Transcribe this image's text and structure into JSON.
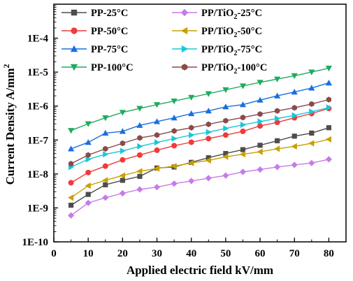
{
  "chart_data": {
    "type": "line",
    "xlabel": "Applied electric field kV/mm",
    "ylabel_prefix": "Current Density A/mm",
    "ylabel_sup": "2",
    "xlim": [
      0,
      85
    ],
    "ylim": [
      1e-10,
      0.001
    ],
    "yscale": "log",
    "x_ticks": [
      "0",
      "10",
      "20",
      "30",
      "40",
      "50",
      "60",
      "70",
      "80"
    ],
    "y_ticks": [
      "1E-10",
      "1E-9",
      "1E-8",
      "1E-7",
      "1E-6",
      "1E-5",
      "1E-4"
    ],
    "legend_position": "top",
    "x": [
      5,
      10,
      15,
      20,
      25,
      30,
      35,
      40,
      45,
      50,
      55,
      60,
      65,
      70,
      75,
      80
    ],
    "series": [
      {
        "name_main": "PP-25°C",
        "name_sub": "",
        "name_tail": "",
        "color": "#4d4d4d",
        "marker": "square",
        "values": [
          1.2e-09,
          2.5e-09,
          4.8e-09,
          6.5e-09,
          8.5e-09,
          1.5e-08,
          1.6e-08,
          2.2e-08,
          3e-08,
          4e-08,
          5.2e-08,
          7e-08,
          9.5e-08,
          1.3e-07,
          1.6e-07,
          2.3e-07
        ]
      },
      {
        "name_main": "PP/TiO",
        "name_sub": "2",
        "name_tail": "-25°C",
        "color": "#c77be6",
        "marker": "diamond",
        "values": [
          6e-10,
          1.4e-09,
          2e-09,
          2.7e-09,
          3.5e-09,
          4.1e-09,
          5.2e-09,
          6.2e-09,
          7.5e-09,
          9e-09,
          1.15e-08,
          1.35e-08,
          1.6e-08,
          1.85e-08,
          2.1e-08,
          2.7e-08
        ]
      },
      {
        "name_main": "PP-50°C",
        "name_sub": "",
        "name_tail": "",
        "color": "#ef3b3b",
        "marker": "circle",
        "values": [
          5.5e-09,
          1.1e-08,
          1.7e-08,
          2.6e-08,
          3.6e-08,
          5e-08,
          6.8e-08,
          8.6e-08,
          1.1e-07,
          1.4e-07,
          1.8e-07,
          2.6e-07,
          3.3e-07,
          4.5e-07,
          6e-07,
          8.5e-07
        ]
      },
      {
        "name_main": "PP/TiO",
        "name_sub": "2",
        "name_tail": "-50°C",
        "color": "#c9a000",
        "marker": "triangle-left",
        "values": [
          2e-09,
          4.5e-09,
          6.5e-09,
          9e-09,
          1.2e-08,
          1.45e-08,
          1.7e-08,
          2.1e-08,
          2.5e-08,
          3.2e-08,
          3.8e-08,
          4.5e-08,
          5.5e-08,
          6.5e-08,
          8e-08,
          1.05e-07
        ]
      },
      {
        "name_main": "PP-75°C",
        "name_sub": "",
        "name_tail": "",
        "color": "#1a6fe0",
        "marker": "triangle-up",
        "values": [
          5.5e-08,
          8.5e-08,
          1.6e-07,
          1.8e-07,
          2.7e-07,
          3.5e-07,
          4.5e-07,
          6e-07,
          7.2e-07,
          9.5e-07,
          1.1e-06,
          1.5e-06,
          2e-06,
          2.6e-06,
          3.4e-06,
          4.8e-06
        ]
      },
      {
        "name_main": "PP/TiO",
        "name_sub": "2",
        "name_tail": "-75°C",
        "color": "#19c7d9",
        "marker": "triangle-right",
        "values": [
          1.6e-08,
          2.7e-08,
          3.8e-08,
          4.8e-08,
          6.5e-08,
          8.5e-08,
          1.1e-07,
          1.4e-07,
          1.7e-07,
          2.2e-07,
          2.8e-07,
          3.5e-07,
          4.3e-07,
          5.3e-07,
          6.8e-07,
          9e-07
        ]
      },
      {
        "name_main": "PP-100°C",
        "name_sub": "",
        "name_tail": "",
        "color": "#1fab60",
        "marker": "triangle-down",
        "values": [
          1.9e-07,
          3e-07,
          4.5e-07,
          6.5e-07,
          8.5e-07,
          1.1e-06,
          1.4e-06,
          1.8e-06,
          2.3e-06,
          3e-06,
          3.9e-06,
          5e-06,
          6.2e-06,
          7.8e-06,
          1e-05,
          1.3e-05
        ]
      },
      {
        "name_main": "PP/TiO",
        "name_sub": "2",
        "name_tail": "-100°C",
        "color": "#8b4a4a",
        "marker": "hexagon",
        "values": [
          2e-08,
          3.6e-08,
          5.5e-08,
          8e-08,
          1.15e-07,
          1.4e-07,
          1.85e-07,
          2.3e-07,
          2.9e-07,
          3.7e-07,
          4.6e-07,
          5.8e-07,
          7.2e-07,
          8.9e-07,
          1.15e-06,
          1.55e-06
        ]
      }
    ]
  }
}
